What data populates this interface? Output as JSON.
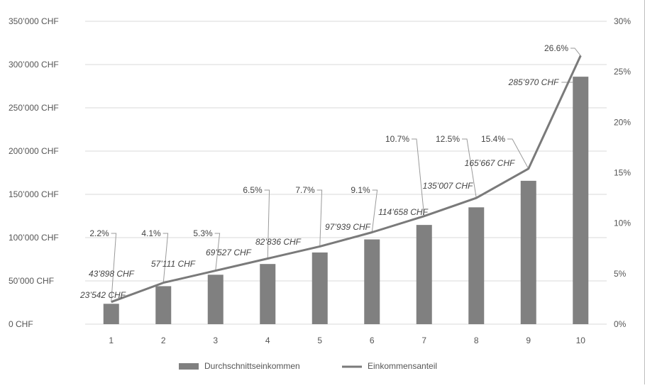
{
  "chart_data": {
    "type": "bar",
    "categories": [
      "1",
      "2",
      "3",
      "4",
      "5",
      "6",
      "7",
      "8",
      "9",
      "10"
    ],
    "series": [
      {
        "name": "Durchschnittseinkommen",
        "type": "bar",
        "axis": "left",
        "values": [
          23542,
          43898,
          57111,
          69527,
          82836,
          97939,
          114658,
          135007,
          165667,
          285970
        ],
        "labels": [
          "23’542 CHF",
          "43’898 CHF",
          "57’111 CHF",
          "69’527 CHF",
          "82’836 CHF",
          "97’939 CHF",
          "114’658 CHF",
          "135’007 CHF",
          "165’667 CHF",
          "285’970 CHF"
        ],
        "color": "#808080"
      },
      {
        "name": "Einkommensanteil",
        "type": "line",
        "axis": "right",
        "values": [
          2.2,
          4.1,
          5.3,
          6.5,
          7.7,
          9.1,
          10.7,
          12.5,
          15.4,
          26.6
        ],
        "labels": [
          "2.2%",
          "4.1%",
          "5.3%",
          "6.5%",
          "7.7%",
          "9.1%",
          "10.7%",
          "12.5%",
          "15.4%",
          "26.6%"
        ],
        "color": "#7a7a7a"
      }
    ],
    "y_left": {
      "ylim": [
        0,
        350000
      ],
      "ticks": [
        0,
        50000,
        100000,
        150000,
        200000,
        250000,
        300000,
        350000
      ],
      "tick_labels": [
        "0 CHF",
        "50’000 CHF",
        "100’000 CHF",
        "150’000 CHF",
        "200’000 CHF",
        "250’000 CHF",
        "300’000 CHF",
        "350’000 CHF"
      ]
    },
    "y_right": {
      "ylim": [
        0,
        30
      ],
      "ticks": [
        0,
        5,
        10,
        15,
        20,
        25,
        30
      ],
      "tick_labels": [
        "0%",
        "5%",
        "10%",
        "15%",
        "20%",
        "25%",
        "30%"
      ]
    },
    "grid": true,
    "legend": {
      "position": "bottom",
      "entries": [
        "Durchschnittseinkommen",
        "Einkommensanteil"
      ]
    }
  }
}
